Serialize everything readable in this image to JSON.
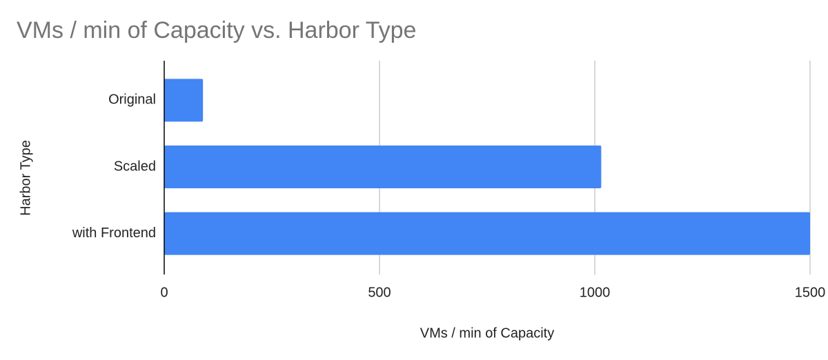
{
  "chart_data": {
    "type": "hbar",
    "title": "VMs / min of Capacity vs. Harbor Type",
    "x_label": "VMs / min of Capacity",
    "y_label": "Harbor Type",
    "categories": [
      "Original",
      "Scaled",
      "with Frontend"
    ],
    "values": [
      90,
      1015,
      1500
    ],
    "color": "#4285f4",
    "xlim": [
      0,
      1500
    ],
    "xticks": [
      0,
      500,
      1000,
      1500
    ],
    "grid": true
  }
}
